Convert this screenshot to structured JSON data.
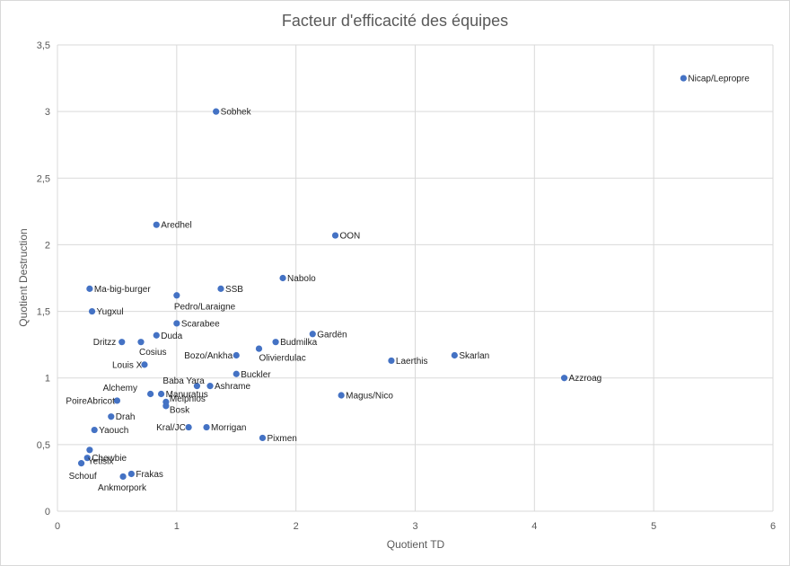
{
  "chart_data": {
    "type": "scatter",
    "title": "Facteur d'efficacité des équipes",
    "xlabel": "Quotient TD",
    "ylabel": "Quotient Destruction",
    "xlim": [
      0,
      6
    ],
    "ylim": [
      0,
      3.5
    ],
    "grid": true,
    "x_ticks": [
      "0",
      "1",
      "2",
      "3",
      "4",
      "5",
      "6"
    ],
    "y_ticks": [
      "0",
      "0,5",
      "1",
      "1,5",
      "2",
      "2,5",
      "3",
      "3,5"
    ],
    "marker_color": "#4472c4",
    "points": [
      {
        "label": "Nicap/Lepropre",
        "x": 5.25,
        "y": 3.25
      },
      {
        "label": "Sobhek",
        "x": 1.33,
        "y": 3.0
      },
      {
        "label": "Aredhel",
        "x": 0.83,
        "y": 2.15
      },
      {
        "label": "OON",
        "x": 2.33,
        "y": 2.07
      },
      {
        "label": "Nabolo",
        "x": 1.89,
        "y": 1.75
      },
      {
        "label": "Ma-big-burger",
        "x": 0.27,
        "y": 1.67
      },
      {
        "label": "SSB",
        "x": 1.37,
        "y": 1.67
      },
      {
        "label": "Pedro/Laraigne",
        "x": 1.0,
        "y": 1.62
      },
      {
        "label": "Yugxul",
        "x": 0.29,
        "y": 1.5
      },
      {
        "label": "Scarabee",
        "x": 1.0,
        "y": 1.41
      },
      {
        "label": "Gardën",
        "x": 2.14,
        "y": 1.33
      },
      {
        "label": "Duda",
        "x": 0.83,
        "y": 1.32
      },
      {
        "label": "Dritzz",
        "x": 0.54,
        "y": 1.27
      },
      {
        "label": "Cosius",
        "x": 0.7,
        "y": 1.27
      },
      {
        "label": "Budmilka",
        "x": 1.83,
        "y": 1.27
      },
      {
        "label": "Olivierdulac",
        "x": 1.69,
        "y": 1.22
      },
      {
        "label": "Bozo/Ankha",
        "x": 1.5,
        "y": 1.17
      },
      {
        "label": "Skarlan",
        "x": 3.33,
        "y": 1.17
      },
      {
        "label": "Laerthis",
        "x": 2.8,
        "y": 1.13
      },
      {
        "label": "Louis X",
        "x": 0.73,
        "y": 1.1
      },
      {
        "label": "Buckler",
        "x": 1.5,
        "y": 1.03
      },
      {
        "label": "Azzroag",
        "x": 4.25,
        "y": 1.0
      },
      {
        "label": "Baba Yara",
        "x": 1.17,
        "y": 0.94
      },
      {
        "label": "Ashrame",
        "x": 1.28,
        "y": 0.94
      },
      {
        "label": "Alchemy",
        "x": 0.78,
        "y": 0.88
      },
      {
        "label": "Manuratus",
        "x": 0.87,
        "y": 0.88
      },
      {
        "label": "Magus/Nico",
        "x": 2.38,
        "y": 0.87
      },
      {
        "label": "PoireAbricot",
        "x": 0.5,
        "y": 0.83
      },
      {
        "label": "Melphios",
        "x": 0.91,
        "y": 0.82
      },
      {
        "label": "Bosk",
        "x": 0.91,
        "y": 0.79
      },
      {
        "label": "Drah",
        "x": 0.45,
        "y": 0.71
      },
      {
        "label": "Kral/JC",
        "x": 1.1,
        "y": 0.63
      },
      {
        "label": "Morrigan",
        "x": 1.25,
        "y": 0.63
      },
      {
        "label": "Yaouch",
        "x": 0.31,
        "y": 0.61
      },
      {
        "label": "Pixmen",
        "x": 1.72,
        "y": 0.55
      },
      {
        "label": "Yetislx",
        "x": 0.27,
        "y": 0.46
      },
      {
        "label": "Chewbie",
        "x": 0.25,
        "y": 0.4
      },
      {
        "label": "Schouf",
        "x": 0.2,
        "y": 0.36
      },
      {
        "label": "Frakas",
        "x": 0.62,
        "y": 0.28
      },
      {
        "label": "Ankmorpork",
        "x": 0.55,
        "y": 0.26
      }
    ]
  }
}
